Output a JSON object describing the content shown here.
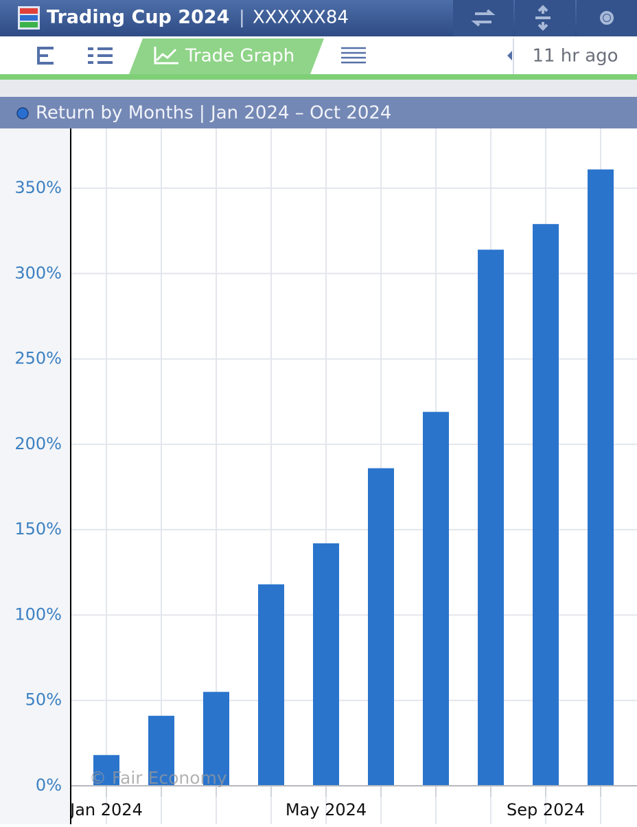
{
  "header": {
    "title": "Trading Cup 2024",
    "account": "XXXXXX84",
    "tab": "Trade Graph",
    "updated": "11 hr ago"
  },
  "chart_data": {
    "type": "bar",
    "title": "Return by Months | Jan 2024 – Oct 2024",
    "categories": [
      "Jan 2024",
      null,
      null,
      null,
      "May 2024",
      null,
      null,
      null,
      "Sep 2024",
      null
    ],
    "values": [
      18,
      41,
      55,
      118,
      142,
      186,
      219,
      314,
      329,
      361
    ],
    "color": "#2a74cc",
    "ylim": [
      0,
      385
    ],
    "yticks": [
      {
        "value": 0,
        "label": "0%"
      },
      {
        "value": 50,
        "label": "50%"
      },
      {
        "value": 100,
        "label": "100%"
      },
      {
        "value": 150,
        "label": "150%"
      },
      {
        "value": 200,
        "label": "200%"
      },
      {
        "value": 250,
        "label": "250%"
      },
      {
        "value": 300,
        "label": "300%"
      },
      {
        "value": 350,
        "label": "350%"
      }
    ],
    "grid": true,
    "watermark": "© Fair Economy"
  }
}
